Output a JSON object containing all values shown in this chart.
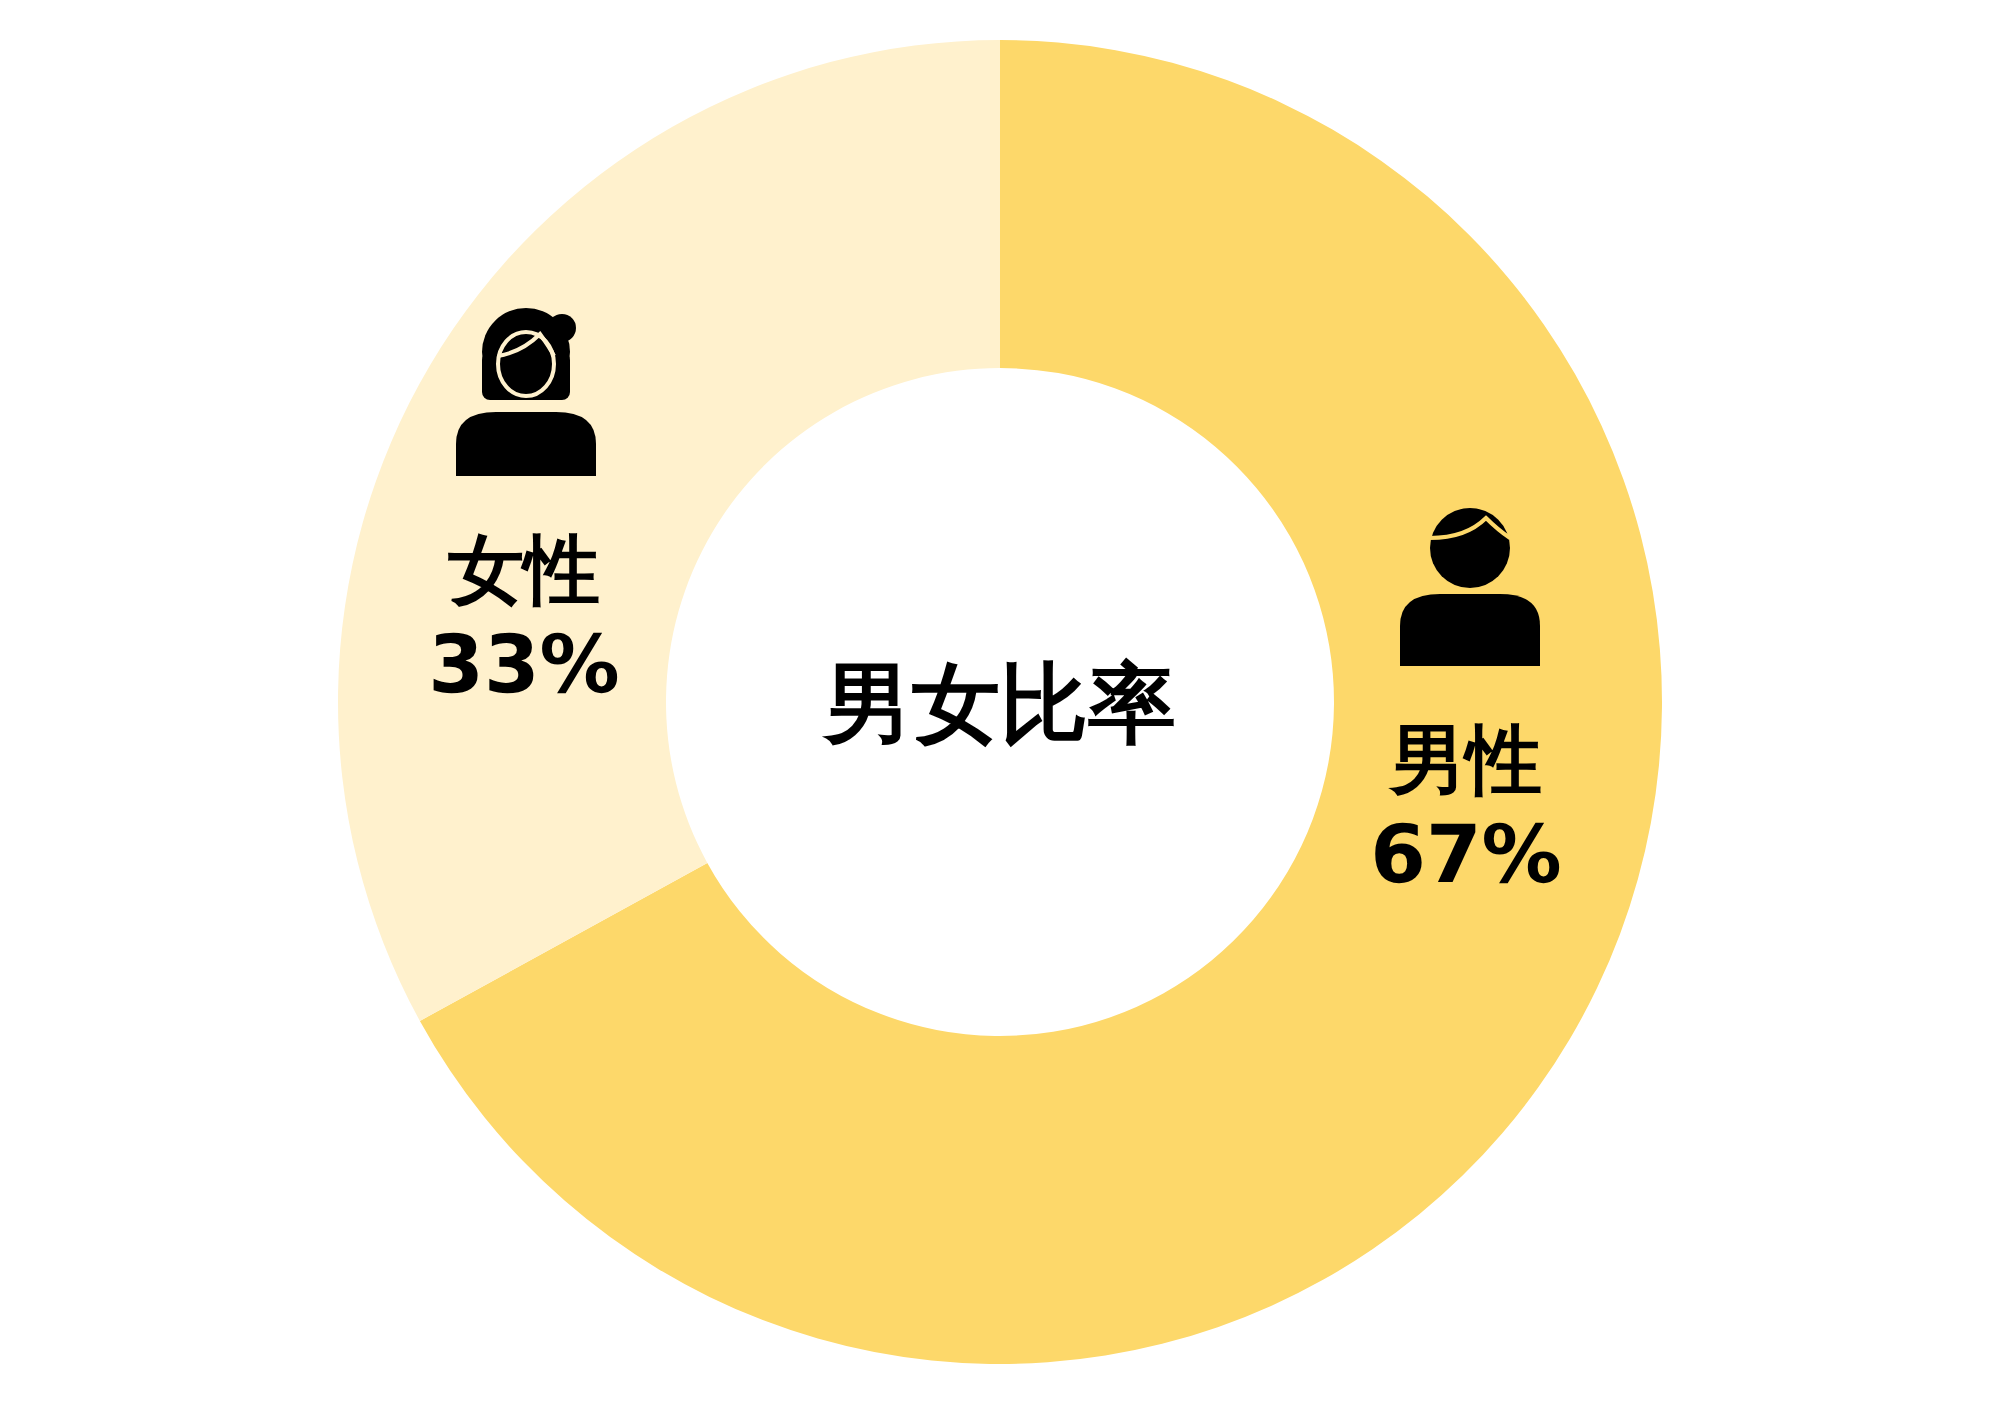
{
  "chart_data": {
    "type": "donut",
    "title": "男女比率",
    "categories": [
      "男性",
      "女性"
    ],
    "values": [
      67,
      33
    ],
    "colors": [
      "#fdd86a",
      "#fff1cd"
    ],
    "value_labels": [
      "67%",
      "33%"
    ]
  }
}
